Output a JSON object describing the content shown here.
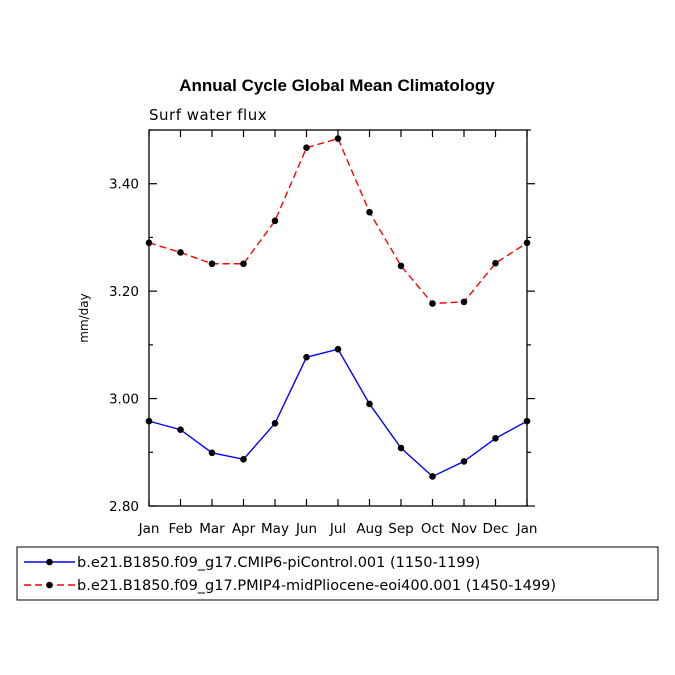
{
  "chart_data": {
    "type": "line",
    "title": "Annual Cycle Global Mean Climatology",
    "subtitle": "Surf water flux",
    "xlabel": "",
    "ylabel": "mm/day",
    "categories": [
      "Jan",
      "Feb",
      "Mar",
      "Apr",
      "May",
      "Jun",
      "Jul",
      "Aug",
      "Sep",
      "Oct",
      "Nov",
      "Dec",
      "Jan"
    ],
    "ylim": [
      2.8,
      3.5
    ],
    "yticks": [
      2.8,
      3.0,
      3.2,
      3.4
    ],
    "ytick_labels": [
      "2.80",
      "3.00",
      "3.20",
      "3.40"
    ],
    "ytick_minor_step": 0.1,
    "grid": false,
    "legend_position": "bottom",
    "series": [
      {
        "name": "b.e21.B1850.f09_g17.CMIP6-piControl.001 (1150-1199)",
        "values": [
          2.958,
          2.942,
          2.899,
          2.887,
          2.954,
          3.077,
          3.092,
          2.99,
          2.908,
          2.855,
          2.883,
          2.926,
          2.958
        ],
        "color": "#0000ff",
        "dash": "solid"
      },
      {
        "name": "b.e21.B1850.f09_g17.PMIP4-midPliocene-eoi400.001 (1450-1499)",
        "values": [
          3.29,
          3.272,
          3.251,
          3.251,
          3.331,
          3.467,
          3.484,
          3.347,
          3.247,
          3.177,
          3.18,
          3.252,
          3.29
        ],
        "color": "#ff0000",
        "dash": "dashed"
      }
    ]
  }
}
